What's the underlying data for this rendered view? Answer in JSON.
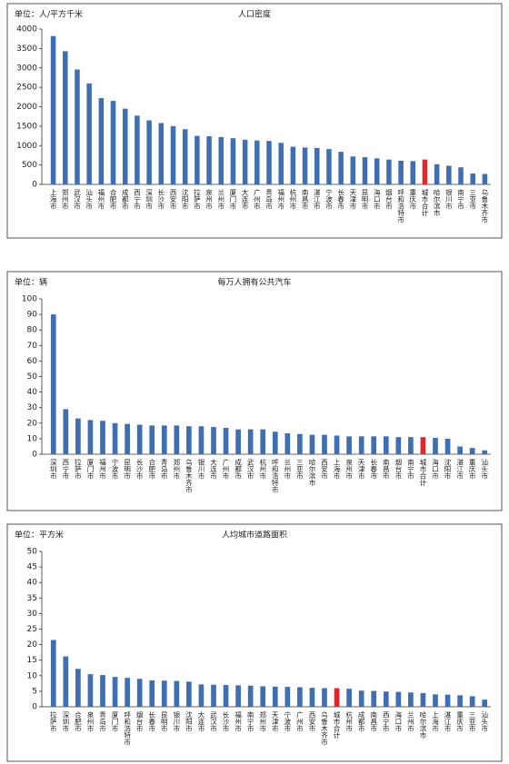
{
  "chart_data": [
    {
      "type": "bar",
      "title": "人口密度",
      "unit_label": "单位：人/平方千米",
      "categories": [
        "上海市",
        "郑州市",
        "武汉市",
        "汕头市",
        "福州市",
        "合肥市",
        "成都市",
        "西宁市",
        "深圳市",
        "长沙市",
        "西安市",
        "沈阳市",
        "拉萨市",
        "泉州市",
        "兰州市",
        "厦门市",
        "大连市",
        "广州市",
        "青岛市",
        "福州市",
        "杭州市",
        "南昌市",
        "湛江市",
        "宁波市",
        "长春市",
        "天津市",
        "昆明市",
        "海口市",
        "烟台市",
        "呼和浩特市",
        "重庆市",
        "城市合计",
        "哈尔滨市",
        "银川市",
        "南宁市",
        "三亚市",
        "乌鲁木齐市"
      ],
      "values": [
        3820,
        3430,
        2960,
        2600,
        2220,
        2150,
        1950,
        1770,
        1650,
        1580,
        1500,
        1420,
        1250,
        1240,
        1220,
        1190,
        1150,
        1130,
        1120,
        1070,
        970,
        950,
        940,
        910,
        840,
        720,
        700,
        670,
        640,
        610,
        600,
        640,
        520,
        480,
        440,
        280,
        270
      ],
      "colors": [
        "#3f6fb0",
        "#3f6fb0",
        "#3f6fb0",
        "#3f6fb0",
        "#3f6fb0",
        "#3f6fb0",
        "#3f6fb0",
        "#3f6fb0",
        "#3f6fb0",
        "#3f6fb0",
        "#3f6fb0",
        "#3f6fb0",
        "#3f6fb0",
        "#3f6fb0",
        "#3f6fb0",
        "#3f6fb0",
        "#3f6fb0",
        "#3f6fb0",
        "#3f6fb0",
        "#3f6fb0",
        "#3f6fb0",
        "#3f6fb0",
        "#3f6fb0",
        "#3f6fb0",
        "#3f6fb0",
        "#3f6fb0",
        "#3f6fb0",
        "#3f6fb0",
        "#3f6fb0",
        "#3f6fb0",
        "#3f6fb0",
        "#e3262b",
        "#3f6fb0",
        "#3f6fb0",
        "#3f6fb0",
        "#3f6fb0",
        "#3f6fb0"
      ],
      "ylim": [
        0,
        4000
      ],
      "yticks": [
        0,
        500,
        1000,
        1500,
        2000,
        2500,
        3000,
        3500,
        4000
      ]
    },
    {
      "type": "bar",
      "title": "每万人拥有公共汽车",
      "unit_label": "单位：辆",
      "categories": [
        "深圳市",
        "西宁市",
        "拉萨市",
        "厦门市",
        "福州市",
        "宁波市",
        "昆明市",
        "长沙市",
        "合肥市",
        "青岛市",
        "郑州市",
        "乌鲁木齐市",
        "银川市",
        "大连市",
        "广州市",
        "成都市",
        "武汉市",
        "杭州市",
        "呼和浩特市",
        "兰州市",
        "三亚市",
        "哈尔滨市",
        "西安市",
        "上海市",
        "泉州市",
        "天津市",
        "长春市",
        "南昌市",
        "烟台市",
        "南宁市",
        "城市合计",
        "海口市",
        "沈阳市",
        "湛江市",
        "重庆市",
        "汕头市"
      ],
      "values": [
        90,
        29,
        23,
        22,
        21.5,
        20,
        19.5,
        19,
        18.5,
        18.5,
        18.5,
        18,
        18,
        17.5,
        17,
        16,
        16,
        16,
        14.5,
        13.5,
        13,
        12.5,
        12.5,
        12,
        11.5,
        11.5,
        11.5,
        11.5,
        11,
        11,
        11,
        10.5,
        10,
        5,
        4,
        2.5
      ],
      "colors": [
        "#3f6fb0",
        "#3f6fb0",
        "#3f6fb0",
        "#3f6fb0",
        "#3f6fb0",
        "#3f6fb0",
        "#3f6fb0",
        "#3f6fb0",
        "#3f6fb0",
        "#3f6fb0",
        "#3f6fb0",
        "#3f6fb0",
        "#3f6fb0",
        "#3f6fb0",
        "#3f6fb0",
        "#3f6fb0",
        "#3f6fb0",
        "#3f6fb0",
        "#3f6fb0",
        "#3f6fb0",
        "#3f6fb0",
        "#3f6fb0",
        "#3f6fb0",
        "#3f6fb0",
        "#3f6fb0",
        "#3f6fb0",
        "#3f6fb0",
        "#3f6fb0",
        "#3f6fb0",
        "#3f6fb0",
        "#e3262b",
        "#3f6fb0",
        "#3f6fb0",
        "#3f6fb0",
        "#3f6fb0",
        "#3f6fb0"
      ],
      "ylim": [
        0,
        100
      ],
      "yticks": [
        0,
        10,
        20,
        30,
        40,
        50,
        60,
        70,
        80,
        90,
        100
      ]
    },
    {
      "type": "bar",
      "title": "人均城市道路面积",
      "unit_label": "单位：平方米",
      "categories": [
        "拉萨市",
        "深圳市",
        "合肥市",
        "泉州市",
        "青岛市",
        "厦门市",
        "呼和浩特市",
        "烟台市",
        "长春市",
        "昆明市",
        "银川市",
        "沈阳市",
        "大连市",
        "武汉市",
        "长沙市",
        "福州市",
        "南宁市",
        "郑州市",
        "天津市",
        "宁波市",
        "广州市",
        "西安市",
        "乌鲁木齐市",
        "城市合计",
        "杭州市",
        "成都市",
        "南昌市",
        "西宁市",
        "海口市",
        "兰州市",
        "哈尔滨市",
        "上海市",
        "湛江市",
        "重庆市",
        "三亚市",
        "汕头市"
      ],
      "values": [
        21.5,
        16.2,
        12.2,
        10.5,
        10.2,
        9.6,
        9.3,
        9,
        8.5,
        8.4,
        8.3,
        8.1,
        7.2,
        7.1,
        7,
        6.9,
        6.8,
        6.6,
        6.5,
        6.4,
        6.3,
        6.1,
        6,
        6,
        5.8,
        5.2,
        5.1,
        4.9,
        4.8,
        4.6,
        4.4,
        4,
        3.9,
        3.7,
        3.4,
        2.3
      ],
      "colors": [
        "#3f6fb0",
        "#3f6fb0",
        "#3f6fb0",
        "#3f6fb0",
        "#3f6fb0",
        "#3f6fb0",
        "#3f6fb0",
        "#3f6fb0",
        "#3f6fb0",
        "#3f6fb0",
        "#3f6fb0",
        "#3f6fb0",
        "#3f6fb0",
        "#3f6fb0",
        "#3f6fb0",
        "#3f6fb0",
        "#3f6fb0",
        "#3f6fb0",
        "#3f6fb0",
        "#3f6fb0",
        "#3f6fb0",
        "#3f6fb0",
        "#3f6fb0",
        "#e3262b",
        "#3f6fb0",
        "#3f6fb0",
        "#3f6fb0",
        "#3f6fb0",
        "#3f6fb0",
        "#3f6fb0",
        "#3f6fb0",
        "#3f6fb0",
        "#3f6fb0",
        "#3f6fb0",
        "#3f6fb0",
        "#3f6fb0"
      ],
      "ylim": [
        0,
        50
      ],
      "yticks": [
        0,
        5,
        10,
        15,
        20,
        25,
        30,
        35,
        40,
        45,
        50
      ]
    }
  ]
}
